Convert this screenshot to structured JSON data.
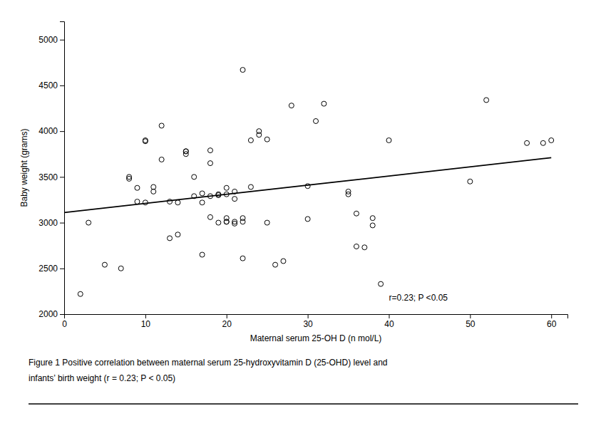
{
  "chart_data": {
    "type": "scatter",
    "xlabel": "Maternal serum 25-OH D (n mol/L)",
    "ylabel": "Baby weight (grams)",
    "series": [
      {
        "type": "scatter",
        "marker": "circle",
        "color": "#000000",
        "x": [
          2,
          3,
          5,
          7,
          8,
          8,
          9,
          9,
          10,
          10,
          10,
          11,
          11,
          12,
          12,
          13,
          13,
          14,
          14,
          15,
          15,
          15,
          16,
          16,
          17,
          17,
          17,
          18,
          18,
          18,
          18,
          19,
          19,
          19,
          20,
          20,
          20,
          20,
          20,
          21,
          21,
          21,
          21,
          22,
          22,
          22,
          22,
          23,
          23,
          24,
          24,
          25,
          25,
          26,
          27,
          28,
          30,
          30,
          31,
          32,
          35,
          35,
          36,
          36,
          37,
          38,
          38,
          39,
          40,
          50,
          52,
          57,
          59,
          60
        ],
        "values": [
          2220,
          3000,
          2540,
          2500,
          3500,
          3480,
          3380,
          3230,
          3890,
          3900,
          3220,
          3390,
          3340,
          4060,
          3690,
          3230,
          2830,
          3220,
          2870,
          3780,
          3780,
          3750,
          3500,
          3290,
          3320,
          3220,
          2650,
          3650,
          3790,
          3290,
          3060,
          3310,
          3300,
          3000,
          3380,
          3310,
          3050,
          3010,
          3010,
          3340,
          3260,
          3010,
          2990,
          4670,
          3010,
          3050,
          2610,
          3390,
          3900,
          3960,
          4000,
          3000,
          3910,
          2540,
          2580,
          4280,
          3400,
          3040,
          4110,
          4300,
          3310,
          3340,
          3100,
          2740,
          2730,
          3050,
          2970,
          2330,
          3900,
          3450,
          4340,
          3870,
          3870,
          3900
        ]
      },
      {
        "type": "line",
        "color": "#000000",
        "x": [
          0,
          60
        ],
        "values": [
          3110,
          3710
        ]
      }
    ],
    "xlim": [
      0,
      62
    ],
    "ylim": [
      2000,
      5200
    ],
    "xticks": [
      0,
      10,
      20,
      30,
      40,
      50,
      60
    ],
    "yticks": [
      2000,
      2500,
      3000,
      3500,
      4000,
      4500,
      5000
    ],
    "grid": false,
    "annotations": [
      {
        "text": "r=0.23; P <0.05",
        "x": 40,
        "y": 2150
      }
    ],
    "caption": [
      "Figure 1 Positive correlation between maternal serum 25-hydroxyvitamin D (25-OHD) level and",
      "infants’ birth weight (r = 0.23; P < 0.05)"
    ]
  }
}
